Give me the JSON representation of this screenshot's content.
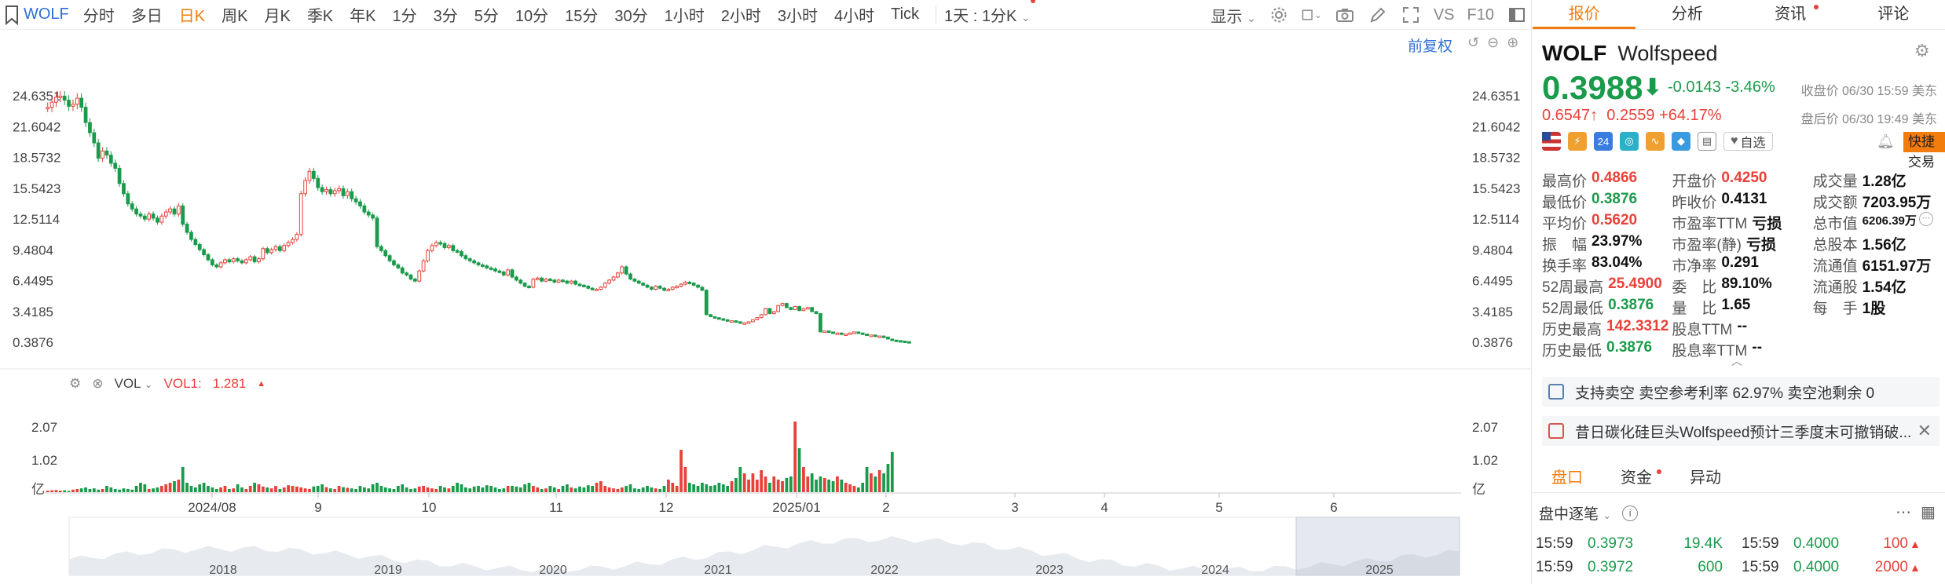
{
  "toolbar": {
    "symbol": "WOLF",
    "periods": [
      "分时",
      "多日",
      "日K",
      "周K",
      "月K",
      "季K",
      "年K",
      "1分",
      "3分",
      "5分",
      "10分",
      "15分",
      "30分",
      "1小时",
      "2小时",
      "3小时",
      "4小时",
      "Tick"
    ],
    "active_period": "日K",
    "interval": "1天 : 1分K",
    "display_label": "显示",
    "vs_label": "VS",
    "f10_label": "F10"
  },
  "chart": {
    "adjust_label": "前复权",
    "y_ticks": [
      "24.6351",
      "21.6042",
      "18.5732",
      "15.5423",
      "12.5114",
      "9.4804",
      "6.4495",
      "3.4185",
      "0.3876"
    ],
    "x_ticks": [
      "2024/08",
      "9",
      "10",
      "11",
      "12",
      "2025/01",
      "2",
      "3",
      "4",
      "5",
      "6"
    ],
    "nav_years": [
      "2018",
      "2019",
      "2020",
      "2021",
      "2022",
      "2023",
      "2024",
      "2025"
    ]
  },
  "volume": {
    "indicator": "VOL",
    "legend_label": "VOL1:",
    "legend_value": "1.281",
    "y_ticks": [
      "2.07",
      "1.02",
      "亿"
    ]
  },
  "chart_data": {
    "type": "candlestick",
    "x_range": [
      "2024/07",
      "2025/06/30"
    ],
    "ylim": [
      0.3876,
      25.49
    ],
    "closes_approx": [
      23.5,
      24.0,
      24.5,
      24.6,
      24.2,
      23.6,
      23.8,
      24.4,
      23.5,
      22.0,
      21.0,
      20.0,
      18.5,
      19.2,
      18.8,
      18.0,
      17.5,
      16.0,
      15.0,
      14.0,
      13.5,
      13.0,
      12.8,
      12.5,
      13.0,
      12.6,
      12.2,
      12.8,
      13.2,
      13.5,
      13.0,
      13.8,
      12.0,
      11.2,
      10.5,
      10.0,
      9.5,
      9.0,
      8.5,
      8.0,
      7.8,
      8.2,
      8.5,
      8.3,
      8.6,
      8.4,
      8.2,
      8.5,
      8.8,
      8.3,
      8.6,
      9.6,
      9.2,
      9.5,
      9.8,
      9.4,
      9.9,
      10.2,
      10.5,
      11.0,
      15.0,
      16.3,
      17.2,
      16.5,
      15.6,
      15.2,
      15.4,
      15.0,
      15.3,
      15.5,
      14.8,
      15.2,
      14.5,
      14.2,
      13.8,
      13.2,
      12.9,
      12.6,
      9.8,
      9.4,
      8.9,
      8.4,
      8.0,
      7.7,
      7.2,
      7.0,
      6.6,
      6.4,
      7.4,
      8.4,
      9.4,
      9.9,
      10.2,
      10.1,
      9.7,
      9.9,
      9.4,
      9.3,
      8.9,
      8.6,
      8.4,
      8.2,
      8.0,
      7.9,
      7.7,
      7.6,
      7.4,
      7.3,
      7.0,
      7.5,
      6.8,
      6.5,
      6.2,
      5.9,
      5.8,
      6.6,
      6.7,
      6.4,
      6.6,
      6.5,
      6.3,
      6.5,
      6.4,
      6.2,
      6.4,
      6.1,
      6.0,
      5.9,
      5.7,
      5.6,
      5.6,
      5.8,
      6.2,
      6.5,
      6.8,
      7.2,
      7.8,
      7.1,
      6.6,
      6.4,
      6.2,
      6.0,
      5.8,
      5.6,
      5.9,
      5.7,
      5.5,
      5.6,
      5.8,
      5.9,
      6.1,
      6.3,
      6.2,
      6.0,
      5.8,
      5.5,
      3.1,
      2.9,
      2.8,
      2.7,
      2.6,
      2.5,
      2.5,
      2.4,
      2.3,
      2.3,
      2.4,
      2.6,
      2.8,
      3.1,
      3.7,
      3.2,
      3.4,
      4.0,
      4.2,
      3.8,
      3.6,
      3.9,
      3.5,
      3.7,
      3.8,
      3.4,
      3.2,
      1.4,
      1.5,
      1.4,
      1.3,
      1.3,
      1.2,
      1.2,
      1.3,
      1.4,
      1.3,
      1.2,
      1.1,
      1.1,
      1.0,
      1.0,
      0.9,
      0.7,
      0.6,
      0.55,
      0.5,
      0.45,
      0.4
    ],
    "volumes_approx_yi": [
      0.05,
      0.06,
      0.07,
      0.05,
      0.06,
      0.04,
      0.08,
      0.1,
      0.12,
      0.15,
      0.1,
      0.12,
      0.08,
      0.1,
      0.2,
      0.15,
      0.1,
      0.08,
      0.12,
      0.1,
      0.08,
      0.2,
      0.3,
      0.25,
      0.1,
      0.12,
      0.15,
      0.2,
      0.25,
      0.3,
      0.35,
      0.4,
      0.8,
      0.3,
      0.2,
      0.15,
      0.25,
      0.3,
      0.2,
      0.15,
      0.1,
      0.15,
      0.2,
      0.1,
      0.12,
      0.25,
      0.15,
      0.1,
      0.2,
      0.3,
      0.25,
      0.18,
      0.15,
      0.12,
      0.2,
      0.1,
      0.15,
      0.22,
      0.2,
      0.18,
      0.15,
      0.12,
      0.1,
      0.18,
      0.2,
      0.25,
      0.16,
      0.12,
      0.1,
      0.2,
      0.16,
      0.14,
      0.12,
      0.1,
      0.2,
      0.15,
      0.12,
      0.25,
      0.3,
      0.2,
      0.15,
      0.12,
      0.1,
      0.2,
      0.25,
      0.15,
      0.1,
      0.12,
      0.18,
      0.2,
      0.15,
      0.12,
      0.1,
      0.2,
      0.15,
      0.12,
      0.2,
      0.3,
      0.25,
      0.15,
      0.12,
      0.18,
      0.2,
      0.15,
      0.22,
      0.2,
      0.15,
      0.1,
      0.12,
      0.2,
      0.2,
      0.18,
      0.15,
      0.25,
      0.3,
      0.2,
      0.15,
      0.1,
      0.12,
      0.2,
      0.15,
      0.1,
      0.2,
      0.25,
      0.15,
      0.12,
      0.18,
      0.15,
      0.22,
      0.2,
      0.3,
      0.35,
      0.2,
      0.15,
      0.12,
      0.1,
      0.15,
      0.2,
      0.25,
      0.12,
      0.1,
      0.15,
      0.2,
      0.15,
      0.12,
      0.1,
      0.2,
      0.4,
      0.3,
      0.2,
      1.35,
      0.8,
      0.3,
      0.25,
      0.2,
      0.3,
      0.25,
      0.2,
      0.22,
      0.3,
      0.25,
      0.2,
      0.35,
      0.45,
      0.8,
      0.6,
      0.4,
      0.6,
      0.4,
      0.7,
      0.5,
      0.3,
      0.5,
      0.4,
      0.35,
      0.45,
      0.5,
      2.25,
      1.4,
      0.8,
      0.5,
      0.6,
      0.4,
      0.5,
      0.45,
      0.4,
      0.35,
      0.5,
      0.4,
      0.3,
      0.25,
      0.2,
      0.15,
      0.3,
      0.8,
      0.6,
      0.5,
      0.7,
      0.6,
      0.9,
      1.28
    ]
  },
  "quote": {
    "symbol": "WOLF",
    "name": "Wolfspeed",
    "price": "0.3988",
    "change": "-0.0143",
    "change_pct": "-3.46%",
    "close_label": "收盘价 06/30 15:59 美东",
    "after_price": "0.6547",
    "after_change": "0.2559",
    "after_pct": "+64.17%",
    "after_label": "盘后价 06/30 19:49 美东",
    "watch_label": "自选",
    "quick_trade": "快捷交易",
    "icon_labels": [
      "24"
    ]
  },
  "tabs": [
    "报价",
    "分析",
    "资讯",
    "评论"
  ],
  "stats": [
    [
      {
        "label": "最高价",
        "value": "0.4866",
        "color": "red"
      },
      {
        "label": "开盘价",
        "value": "0.4250",
        "color": "red"
      },
      {
        "label": "成交量",
        "value": "1.28亿",
        "color": ""
      }
    ],
    [
      {
        "label": "最低价",
        "value": "0.3876",
        "color": "green"
      },
      {
        "label": "昨收价",
        "value": "0.4131",
        "color": ""
      },
      {
        "label": "成交额",
        "value": "7203.95万",
        "color": ""
      }
    ],
    [
      {
        "label": "平均价",
        "value": "0.5620",
        "color": "red"
      },
      {
        "label": "市盈率TTM",
        "value": "亏损",
        "color": ""
      },
      {
        "label": "总市值",
        "value": "6206.39万",
        "color": ""
      }
    ],
    [
      {
        "label": "振　幅",
        "value": "23.97%",
        "color": ""
      },
      {
        "label": "市盈率(静)",
        "value": "亏损",
        "color": ""
      },
      {
        "label": "总股本",
        "value": "1.56亿",
        "color": ""
      }
    ],
    [
      {
        "label": "换手率",
        "value": "83.04%",
        "color": ""
      },
      {
        "label": "市净率",
        "value": "0.291",
        "color": ""
      },
      {
        "label": "流通值",
        "value": "6151.97万",
        "color": ""
      }
    ],
    [
      {
        "label": "52周最高",
        "value": "25.4900",
        "color": "red"
      },
      {
        "label": "委　比",
        "value": "89.10%",
        "color": ""
      },
      {
        "label": "流通股",
        "value": "1.54亿",
        "color": ""
      }
    ],
    [
      {
        "label": "52周最低",
        "value": "0.3876",
        "color": "green"
      },
      {
        "label": "量　比",
        "value": "1.65",
        "color": ""
      },
      {
        "label": "每　手",
        "value": "1股",
        "color": ""
      }
    ],
    [
      {
        "label": "历史最高",
        "value": "142.3312",
        "color": "red"
      },
      {
        "label": "股息TTM",
        "value": "--",
        "color": ""
      },
      {
        "label": "",
        "value": "",
        "color": ""
      }
    ],
    [
      {
        "label": "历史最低",
        "value": "0.3876",
        "color": "green"
      },
      {
        "label": "股息率TTM",
        "value": "--",
        "color": ""
      },
      {
        "label": "",
        "value": "",
        "color": ""
      }
    ]
  ],
  "notices": [
    "支持卖空 卖空参考利率 62.97% 卖空池剩余 0",
    "昔日碳化硅巨头Wolfspeed预计三季度末可撤销破..."
  ],
  "subtabs": [
    "盘口",
    "资金",
    "异动"
  ],
  "ticks": {
    "title": "盘中逐笔",
    "rows": [
      {
        "t1": "15:59",
        "p1": "0.3973",
        "v1": "19.4K",
        "c1": "green",
        "t2": "15:59",
        "p2": "0.4000",
        "v2": "100",
        "c2": "red",
        "a2": "▲"
      },
      {
        "t1": "15:59",
        "p1": "0.3972",
        "v1": "600",
        "c1": "green",
        "t2": "15:59",
        "p2": "0.4000",
        "v2": "2000",
        "c2": "red",
        "a2": "▲"
      }
    ]
  },
  "colors": {
    "up": "#e8413a",
    "down": "#1a9b4b",
    "accent": "#f27c0c",
    "link": "#2f6fd6"
  }
}
